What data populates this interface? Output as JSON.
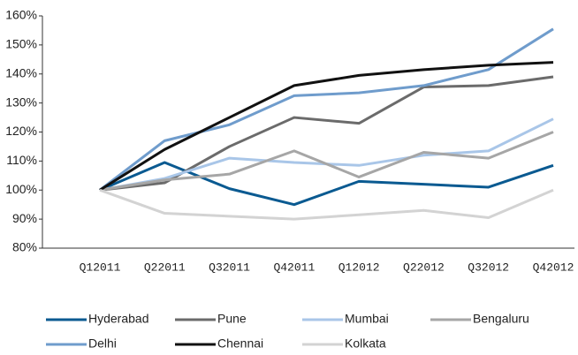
{
  "chart_data": {
    "type": "line",
    "categories": [
      "Q12011",
      "Q22011",
      "Q32011",
      "Q42011",
      "Q12012",
      "Q22012",
      "Q32012",
      "Q42012"
    ],
    "ylim": [
      80,
      160
    ],
    "yticks": [
      {
        "value": 80,
        "label": "80%"
      },
      {
        "value": 90,
        "label": "90%"
      },
      {
        "value": 100,
        "label": "100%"
      },
      {
        "value": 110,
        "label": "110%"
      },
      {
        "value": 120,
        "label": "120%"
      },
      {
        "value": 130,
        "label": "130%"
      },
      {
        "value": 140,
        "label": "140%"
      },
      {
        "value": 150,
        "label": "150%"
      },
      {
        "value": 160,
        "label": "160%"
      }
    ],
    "legend": "bottom",
    "series": [
      {
        "name": "Hyderabad",
        "color": "#0a5a91",
        "values": [
          100,
          109.5,
          100.5,
          95,
          103,
          102,
          101,
          108.5
        ]
      },
      {
        "name": "Pune",
        "color": "#6b6b6b",
        "values": [
          100,
          102.5,
          115,
          125,
          123,
          135.5,
          136,
          139
        ]
      },
      {
        "name": "Mumbai",
        "color": "#a9c6e8",
        "values": [
          100,
          104,
          111,
          109.5,
          108.5,
          112,
          113.5,
          124.5
        ]
      },
      {
        "name": "Bengaluru",
        "color": "#a6a6a6",
        "values": [
          100,
          103.5,
          105.5,
          113.5,
          104.5,
          113,
          111,
          120
        ]
      },
      {
        "name": "Delhi",
        "color": "#6f9ccc",
        "values": [
          100,
          117,
          122.5,
          132.5,
          133.5,
          136,
          141.5,
          155.5
        ]
      },
      {
        "name": "Chennai",
        "color": "#111111",
        "values": [
          100,
          114,
          125,
          136,
          139.5,
          141.5,
          143,
          144
        ]
      },
      {
        "name": "Kolkata",
        "color": "#d3d3d3",
        "values": [
          100,
          92,
          91,
          90,
          91.5,
          93,
          90.5,
          100
        ]
      }
    ]
  }
}
